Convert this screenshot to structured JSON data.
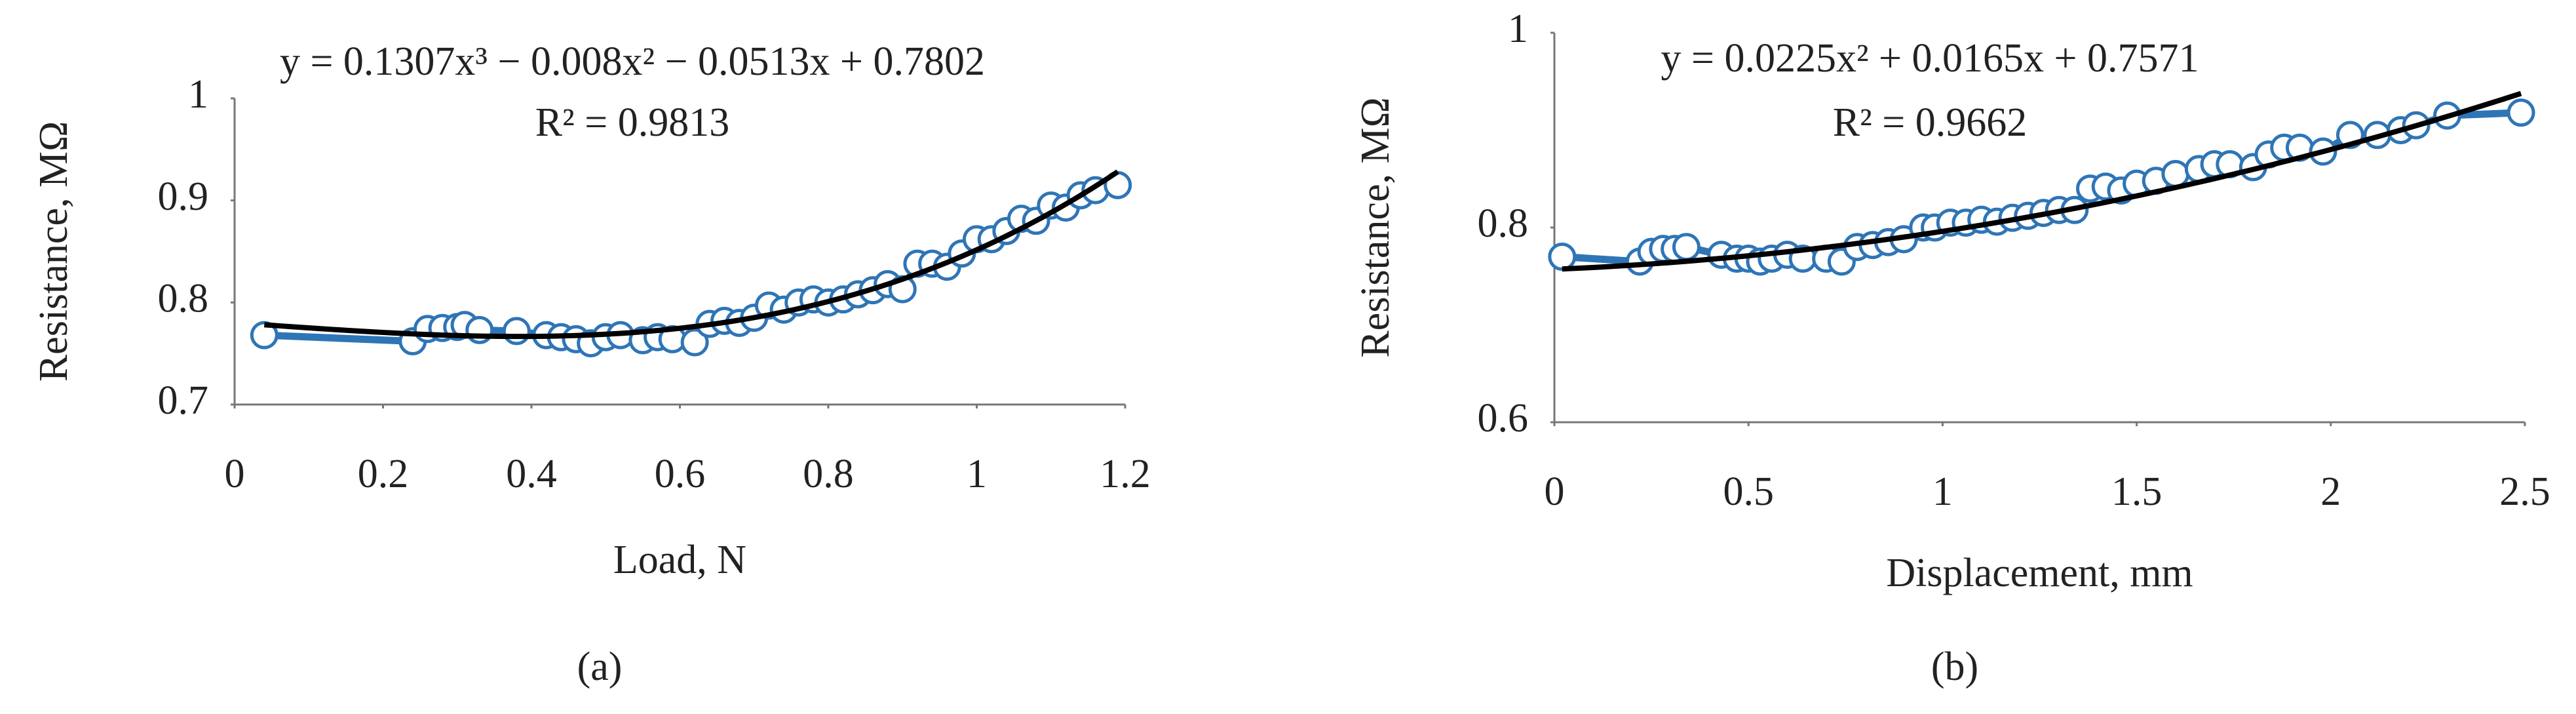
{
  "chart_data": [
    {
      "type": "scatter",
      "caption": "(a)",
      "x_label": "Load, N",
      "y_label": "Resistance, MΩ",
      "color": "#2e75b6",
      "x": [
        0.04,
        0.24,
        0.26,
        0.28,
        0.3,
        0.31,
        0.33,
        0.38,
        0.42,
        0.44,
        0.46,
        0.48,
        0.5,
        0.52,
        0.55,
        0.57,
        0.59,
        0.62,
        0.64,
        0.66,
        0.68,
        0.7,
        0.72,
        0.74,
        0.76,
        0.78,
        0.8,
        0.82,
        0.84,
        0.86,
        0.88,
        0.9,
        0.92,
        0.94,
        0.96,
        0.98,
        1.0,
        1.02,
        1.04,
        1.06,
        1.08,
        1.1,
        1.12,
        1.14,
        1.16,
        1.19
      ],
      "values": [
        0.768,
        0.762,
        0.774,
        0.775,
        0.776,
        0.778,
        0.773,
        0.772,
        0.768,
        0.766,
        0.764,
        0.76,
        0.766,
        0.768,
        0.763,
        0.766,
        0.764,
        0.761,
        0.779,
        0.782,
        0.78,
        0.785,
        0.797,
        0.793,
        0.8,
        0.803,
        0.8,
        0.803,
        0.808,
        0.812,
        0.818,
        0.813,
        0.838,
        0.838,
        0.835,
        0.848,
        0.862,
        0.862,
        0.87,
        0.882,
        0.88,
        0.895,
        0.893,
        0.905,
        0.91,
        0.915
      ],
      "xlim": [
        0,
        1.2
      ],
      "xticks": [
        0,
        0.2,
        0.4,
        0.6,
        0.8,
        1,
        1.2
      ],
      "ylim": [
        0.7,
        1
      ],
      "yticks": [
        0.7,
        0.8,
        0.9,
        1
      ],
      "trendline": {
        "equation": "y = 0.1307x³ − 0.008x² − 0.0513x + 0.7802",
        "r_squared": "R² = 0.9813",
        "coefficients": [
          0.1307,
          -0.008,
          -0.0513,
          0.7802
        ],
        "color": "#000000"
      }
    },
    {
      "type": "scatter",
      "caption": "(b)",
      "x_label": "Displacement, mm",
      "y_label": "Resistance, MΩ",
      "color": "#2e75b6",
      "x": [
        0.02,
        0.22,
        0.25,
        0.28,
        0.31,
        0.34,
        0.43,
        0.47,
        0.5,
        0.53,
        0.56,
        0.6,
        0.64,
        0.7,
        0.74,
        0.78,
        0.82,
        0.86,
        0.9,
        0.95,
        0.98,
        1.02,
        1.06,
        1.1,
        1.14,
        1.18,
        1.22,
        1.26,
        1.3,
        1.34,
        1.38,
        1.42,
        1.46,
        1.5,
        1.55,
        1.6,
        1.66,
        1.7,
        1.74,
        1.8,
        1.84,
        1.88,
        1.92,
        1.98,
        2.05,
        2.12,
        2.18,
        2.22,
        2.3,
        2.49
      ],
      "values": [
        0.77,
        0.765,
        0.775,
        0.778,
        0.778,
        0.78,
        0.772,
        0.768,
        0.768,
        0.765,
        0.768,
        0.772,
        0.768,
        0.768,
        0.765,
        0.78,
        0.782,
        0.785,
        0.788,
        0.8,
        0.8,
        0.805,
        0.805,
        0.808,
        0.806,
        0.81,
        0.812,
        0.815,
        0.818,
        0.818,
        0.84,
        0.842,
        0.838,
        0.845,
        0.848,
        0.855,
        0.86,
        0.865,
        0.865,
        0.862,
        0.875,
        0.882,
        0.882,
        0.878,
        0.895,
        0.895,
        0.9,
        0.905,
        0.915,
        0.918
      ],
      "xlim": [
        0,
        2.5
      ],
      "xticks": [
        0,
        0.5,
        1,
        1.5,
        2,
        2.5
      ],
      "ylim": [
        0.6,
        1
      ],
      "yticks": [
        0.6,
        0.8,
        1
      ],
      "trendline": {
        "equation": "y = 0.0225x² + 0.0165x + 0.7571",
        "r_squared": "R² = 0.9662",
        "coefficients": [
          0.0225,
          0.0165,
          0.7571
        ],
        "color": "#000000"
      }
    }
  ]
}
